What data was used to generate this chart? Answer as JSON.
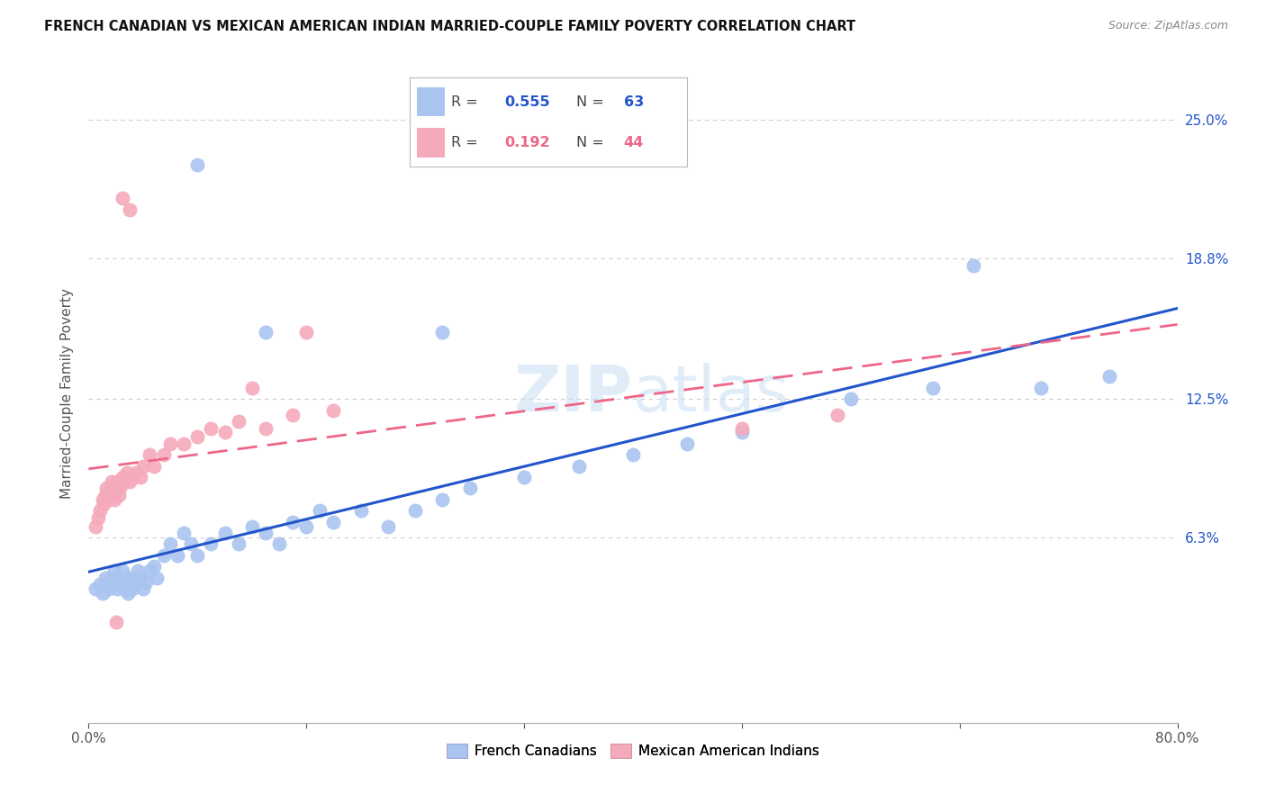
{
  "title": "FRENCH CANADIAN VS MEXICAN AMERICAN INDIAN MARRIED-COUPLE FAMILY POVERTY CORRELATION CHART",
  "source": "Source: ZipAtlas.com",
  "ylabel": "Married-Couple Family Poverty",
  "ytick_labels": [
    "25.0%",
    "18.8%",
    "12.5%",
    "6.3%"
  ],
  "ytick_values": [
    0.25,
    0.188,
    0.125,
    0.063
  ],
  "xlim": [
    0.0,
    0.8
  ],
  "ylim": [
    -0.02,
    0.275
  ],
  "watermark": "ZIPatlas",
  "blue_r": "0.555",
  "blue_n": "63",
  "pink_r": "0.192",
  "pink_n": "44",
  "blue_color": "#aac4f0",
  "pink_color": "#f5aabb",
  "blue_line_color": "#2255cc",
  "pink_line_color": "#ee6688",
  "background_color": "#ffffff",
  "grid_color": "#cccccc",
  "blue_points_x": [
    0.005,
    0.008,
    0.01,
    0.012,
    0.013,
    0.015,
    0.017,
    0.018,
    0.019,
    0.02,
    0.021,
    0.022,
    0.023,
    0.025,
    0.026,
    0.027,
    0.028,
    0.029,
    0.03,
    0.032,
    0.033,
    0.035,
    0.036,
    0.038,
    0.04,
    0.042,
    0.045,
    0.048,
    0.05,
    0.055,
    0.06,
    0.065,
    0.07,
    0.075,
    0.08,
    0.09,
    0.1,
    0.11,
    0.12,
    0.13,
    0.14,
    0.15,
    0.16,
    0.17,
    0.18,
    0.2,
    0.22,
    0.24,
    0.26,
    0.28,
    0.32,
    0.36,
    0.4,
    0.44,
    0.48,
    0.56,
    0.62,
    0.65,
    0.7,
    0.75,
    0.26,
    0.13,
    0.08
  ],
  "blue_points_y": [
    0.04,
    0.042,
    0.038,
    0.045,
    0.042,
    0.04,
    0.043,
    0.045,
    0.048,
    0.043,
    0.04,
    0.042,
    0.045,
    0.048,
    0.04,
    0.043,
    0.045,
    0.038,
    0.042,
    0.04,
    0.045,
    0.043,
    0.048,
    0.045,
    0.04,
    0.043,
    0.048,
    0.05,
    0.045,
    0.055,
    0.06,
    0.055,
    0.065,
    0.06,
    0.055,
    0.06,
    0.065,
    0.06,
    0.068,
    0.065,
    0.06,
    0.07,
    0.068,
    0.075,
    0.07,
    0.075,
    0.068,
    0.075,
    0.08,
    0.085,
    0.09,
    0.095,
    0.1,
    0.105,
    0.11,
    0.125,
    0.13,
    0.185,
    0.13,
    0.135,
    0.155,
    0.155,
    0.23
  ],
  "pink_points_x": [
    0.005,
    0.007,
    0.008,
    0.01,
    0.011,
    0.012,
    0.013,
    0.014,
    0.015,
    0.016,
    0.017,
    0.018,
    0.019,
    0.02,
    0.021,
    0.022,
    0.023,
    0.025,
    0.026,
    0.028,
    0.03,
    0.032,
    0.035,
    0.038,
    0.04,
    0.045,
    0.048,
    0.055,
    0.06,
    0.07,
    0.08,
    0.09,
    0.1,
    0.11,
    0.13,
    0.15,
    0.18,
    0.48,
    0.55,
    0.025,
    0.03,
    0.12,
    0.16,
    0.02
  ],
  "pink_points_y": [
    0.068,
    0.072,
    0.075,
    0.08,
    0.078,
    0.082,
    0.085,
    0.08,
    0.082,
    0.085,
    0.088,
    0.082,
    0.08,
    0.085,
    0.088,
    0.082,
    0.085,
    0.09,
    0.088,
    0.092,
    0.088,
    0.09,
    0.092,
    0.09,
    0.095,
    0.1,
    0.095,
    0.1,
    0.105,
    0.105,
    0.108,
    0.112,
    0.11,
    0.115,
    0.112,
    0.118,
    0.12,
    0.112,
    0.118,
    0.215,
    0.21,
    0.13,
    0.155,
    0.025
  ]
}
